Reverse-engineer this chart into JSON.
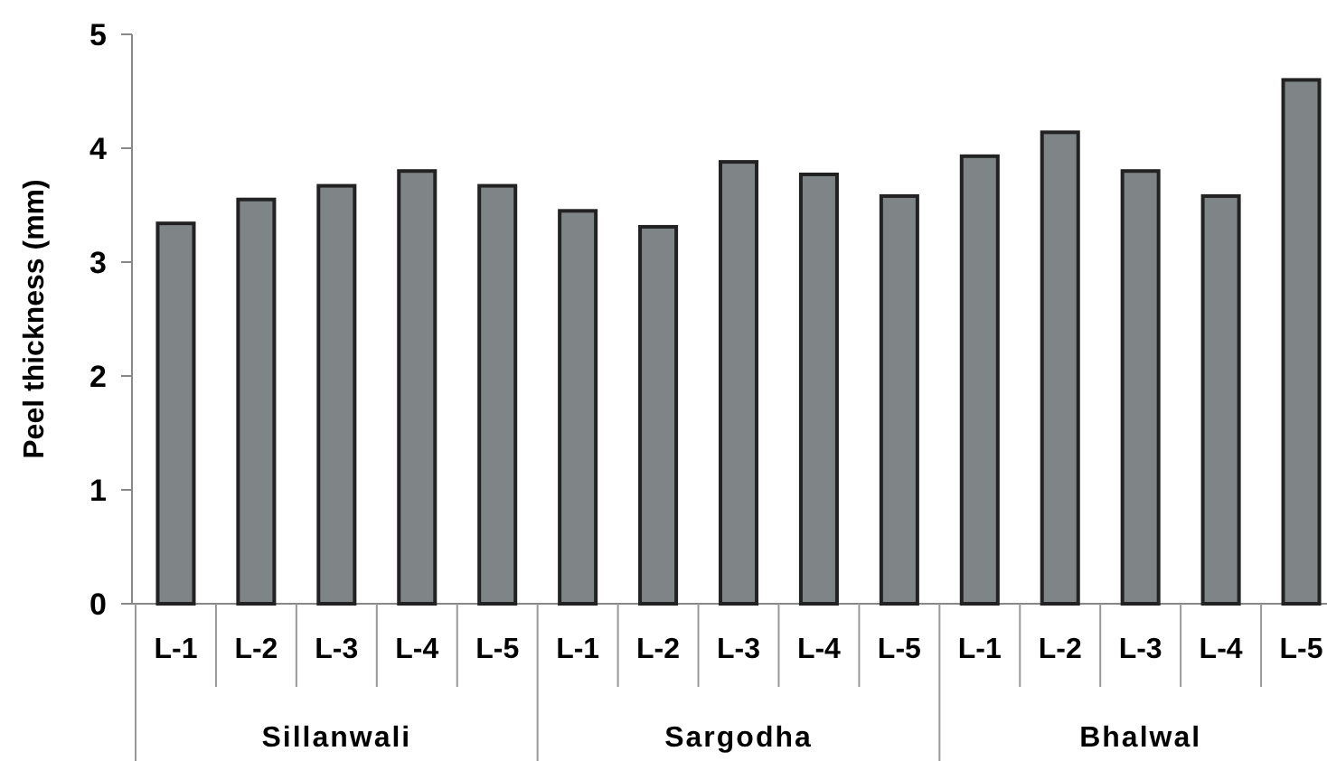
{
  "chart_data": {
    "type": "bar",
    "ylabel": "Peel thickness (mm)",
    "categories": [
      "L-1",
      "L-2",
      "L-3",
      "L-4",
      "L-5",
      "L-1",
      "L-2",
      "L-3",
      "L-4",
      "L-5",
      "L-1",
      "L-2",
      "L-3",
      "L-4",
      "L-5"
    ],
    "values": [
      3.34,
      3.55,
      3.67,
      3.8,
      3.67,
      3.45,
      3.31,
      3.88,
      3.77,
      3.58,
      3.93,
      4.14,
      3.8,
      3.58,
      4.6
    ],
    "color": "#7f8487",
    "annotations": [
      "Sillanwali",
      "Sargodha",
      "Bhalwal"
    ],
    "ylim": [
      0,
      5
    ],
    "yticks": [
      0,
      1,
      2,
      3,
      4,
      5
    ]
  }
}
